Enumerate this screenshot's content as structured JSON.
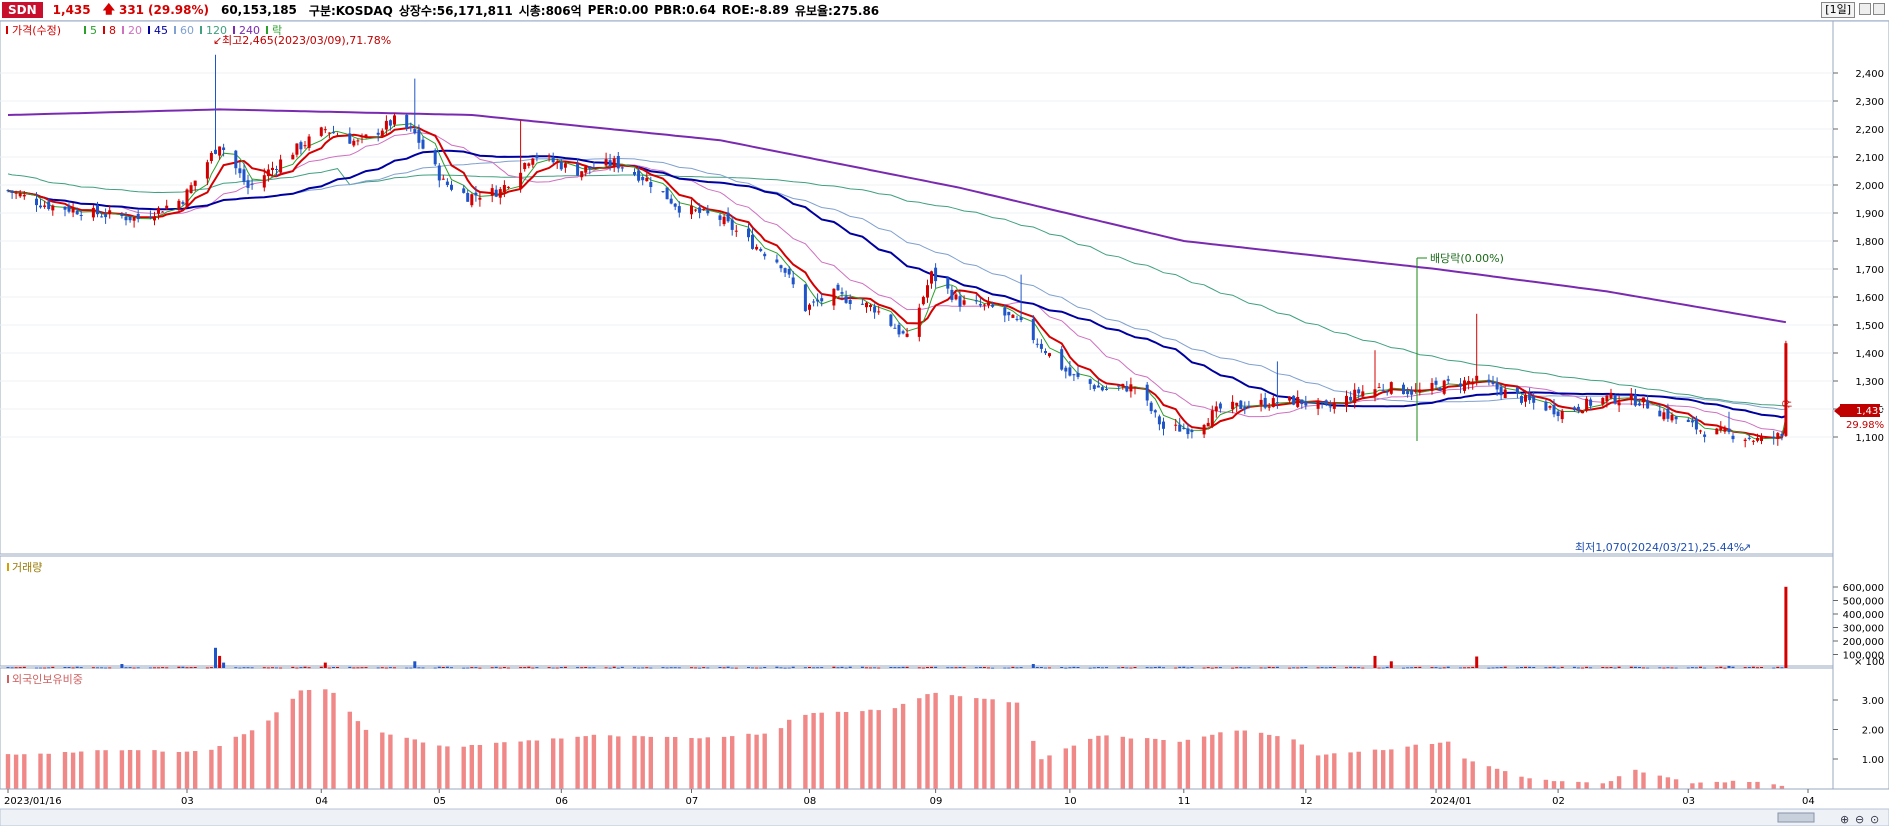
{
  "header": {
    "ticker": "SDN",
    "price": "1,435",
    "change": "331",
    "change_pct": "(29.98%)",
    "volume": "60,153,185",
    "market": "구분:KOSDAQ",
    "shares": "상장수:56,171,811",
    "market_cap": "시총:806억",
    "per": "PER:0.00",
    "pbr": "PBR:0.64",
    "roe": "ROE:-8.89",
    "float_rate": "유보율:275.86",
    "period": "[1일]"
  },
  "price_panel": {
    "legend": [
      {
        "label": "가격(수정)",
        "color": "#d40000"
      },
      {
        "label": "5",
        "color": "#2aa02a"
      },
      {
        "label": "8",
        "color": "#d40000"
      },
      {
        "label": "20",
        "color": "#d070c0"
      },
      {
        "label": "45",
        "color": "#0000a0"
      },
      {
        "label": "60",
        "color": "#7fa0d0"
      },
      {
        "label": "120",
        "color": "#40a080"
      },
      {
        "label": "240",
        "color": "#7a2ab0"
      },
      {
        "label": "락",
        "color": "#2aa02a"
      }
    ],
    "yticks": [
      "2,400",
      "2,300",
      "2,200",
      "2,100",
      "2,000",
      "1,900",
      "1,800",
      "1,700",
      "1,600",
      "1,500",
      "1,400",
      "1,300",
      "1,200",
      "1,100"
    ],
    "high_label": "최고2,465(2023/03/09),71.78%",
    "low_label": "최저1,070(2024/03/21),25.44%",
    "dividend_label": "배당락(0.00%)",
    "limit_up_label": "상",
    "current_price": "1,435",
    "current_pct": "29.98%"
  },
  "volume_panel": {
    "title": "거래량",
    "yticks": [
      "600,000",
      "500,000",
      "400,000",
      "300,000",
      "200,000",
      "100,000"
    ],
    "unit": "× 100"
  },
  "foreign_panel": {
    "title": "외국인보유비중",
    "yticks": [
      "3.00",
      "2.00",
      "1.00"
    ]
  },
  "xaxis": {
    "labels": [
      "2023/01/16",
      "03",
      "04",
      "05",
      "06",
      "07",
      "08",
      "09",
      "10",
      "11",
      "12",
      "2024/01",
      "02",
      "03",
      "04"
    ]
  },
  "chart_data": {
    "type": "candlestick",
    "description_units": "KRW daily candles, volume in shares x100, foreign ownership in %",
    "x_start": "2023/01/16",
    "x_end": "2024/03/29",
    "price_ylim": [
      1050,
      2500
    ],
    "price_anchors": [
      [
        "2023/01/16",
        1980
      ],
      [
        "2023/01/25",
        1930
      ],
      [
        "2023/02/06",
        1900
      ],
      [
        "2023/02/17",
        1880
      ],
      [
        "2023/02/28",
        1950
      ],
      [
        "2023/03/09",
        2150
      ],
      [
        "2023/03/16",
        1990
      ],
      [
        "2023/03/27",
        2120
      ],
      [
        "2023/04/04",
        2200
      ],
      [
        "2023/04/12",
        2150
      ],
      [
        "2023/04/21",
        2230
      ],
      [
        "2023/04/26",
        2180
      ],
      [
        "2023/05/03",
        2010
      ],
      [
        "2023/05/09",
        1960
      ],
      [
        "2023/05/17",
        1980
      ],
      [
        "2023/05/25",
        2110
      ],
      [
        "2023/06/05",
        2050
      ],
      [
        "2023/06/14",
        2080
      ],
      [
        "2023/06/22",
        2020
      ],
      [
        "2023/06/30",
        1920
      ],
      [
        "2023/07/10",
        1880
      ],
      [
        "2023/07/17",
        1800
      ],
      [
        "2023/07/25",
        1720
      ],
      [
        "2023/07/31",
        1560
      ],
      [
        "2023/08/07",
        1610
      ],
      [
        "2023/08/17",
        1560
      ],
      [
        "2023/08/25",
        1450
      ],
      [
        "2023/08/31",
        1680
      ],
      [
        "2023/09/07",
        1580
      ],
      [
        "2023/09/15",
        1560
      ],
      [
        "2023/09/22",
        1500
      ],
      [
        "2023/10/04",
        1320
      ],
      [
        "2023/10/12",
        1270
      ],
      [
        "2023/10/20",
        1280
      ],
      [
        "2023/10/27",
        1130
      ],
      [
        "2023/11/03",
        1130
      ],
      [
        "2023/11/10",
        1200
      ],
      [
        "2023/11/20",
        1220
      ],
      [
        "2023/11/29",
        1230
      ],
      [
        "2023/12/06",
        1200
      ],
      [
        "2023/12/14",
        1260
      ],
      [
        "2023/12/21",
        1280
      ],
      [
        "2023/12/28",
        1260
      ],
      [
        "2024/01/05",
        1290
      ],
      [
        "2024/01/12",
        1300
      ],
      [
        "2024/01/19",
        1260
      ],
      [
        "2024/01/26",
        1220
      ],
      [
        "2024/02/02",
        1190
      ],
      [
        "2024/02/13",
        1240
      ],
      [
        "2024/02/21",
        1230
      ],
      [
        "2024/02/29",
        1170
      ],
      [
        "2024/03/08",
        1120
      ],
      [
        "2024/03/15",
        1110
      ],
      [
        "2024/03/21",
        1090
      ],
      [
        "2024/03/27",
        1104
      ],
      [
        "2024/03/28",
        1435
      ]
    ],
    "ma240_anchors": [
      [
        "2023/01/16",
        2250
      ],
      [
        "2023/03/09",
        2270
      ],
      [
        "2023/05/10",
        2250
      ],
      [
        "2023/07/10",
        2160
      ],
      [
        "2023/09/07",
        1990
      ],
      [
        "2023/11/01",
        1800
      ],
      [
        "2024/01/02",
        1700
      ],
      [
        "2024/02/13",
        1620
      ],
      [
        "2024/03/28",
        1510
      ]
    ],
    "volume_spikes": [
      [
        "2023/03/08",
        150000
      ],
      [
        "2023/03/09",
        90000
      ],
      [
        "2023/03/10",
        40000
      ],
      [
        "2023/02/13",
        30000
      ],
      [
        "2023/04/26",
        50000
      ],
      [
        "2023/04/04",
        40000
      ],
      [
        "2023/09/25",
        30000
      ],
      [
        "2023/12/18",
        90000
      ],
      [
        "2023/12/22",
        50000
      ],
      [
        "2024/01/12",
        85000
      ],
      [
        "2024/03/14",
        15000
      ],
      [
        "2024/03/28",
        601532
      ]
    ],
    "foreign_anchors": [
      [
        "2023/01/16",
        1.15
      ],
      [
        "2023/02/13",
        1.3
      ],
      [
        "2023/03/06",
        1.25
      ],
      [
        "2023/03/20",
        2.2
      ],
      [
        "2023/03/29",
        3.3
      ],
      [
        "2023/04/05",
        3.4
      ],
      [
        "2023/04/14",
        2.0
      ],
      [
        "2023/05/04",
        1.4
      ],
      [
        "2023/06/09",
        1.8
      ],
      [
        "2023/07/03",
        1.7
      ],
      [
        "2023/07/24",
        1.9
      ],
      [
        "2023/07/28",
        2.5
      ],
      [
        "2023/08/21",
        2.7
      ],
      [
        "2023/08/31",
        3.25
      ],
      [
        "2023/09/19",
        2.95
      ],
      [
        "2023/09/23",
        2.85
      ],
      [
        "2023/09/26",
        0.95
      ],
      [
        "2023/10/11",
        1.8
      ],
      [
        "2023/10/31",
        1.6
      ],
      [
        "2023/11/13",
        2.0
      ],
      [
        "2023/11/27",
        1.75
      ],
      [
        "2023/12/04",
        1.15
      ],
      [
        "2023/12/22",
        1.35
      ],
      [
        "2024/01/05",
        1.6
      ],
      [
        "2024/01/09",
        1.0
      ],
      [
        "2024/01/26",
        0.3
      ],
      [
        "2024/02/13",
        0.15
      ],
      [
        "2024/02/19",
        0.65
      ],
      [
        "2024/03/04",
        0.2
      ],
      [
        "2024/03/20",
        0.25
      ],
      [
        "2024/03/28",
        0.05
      ]
    ]
  }
}
